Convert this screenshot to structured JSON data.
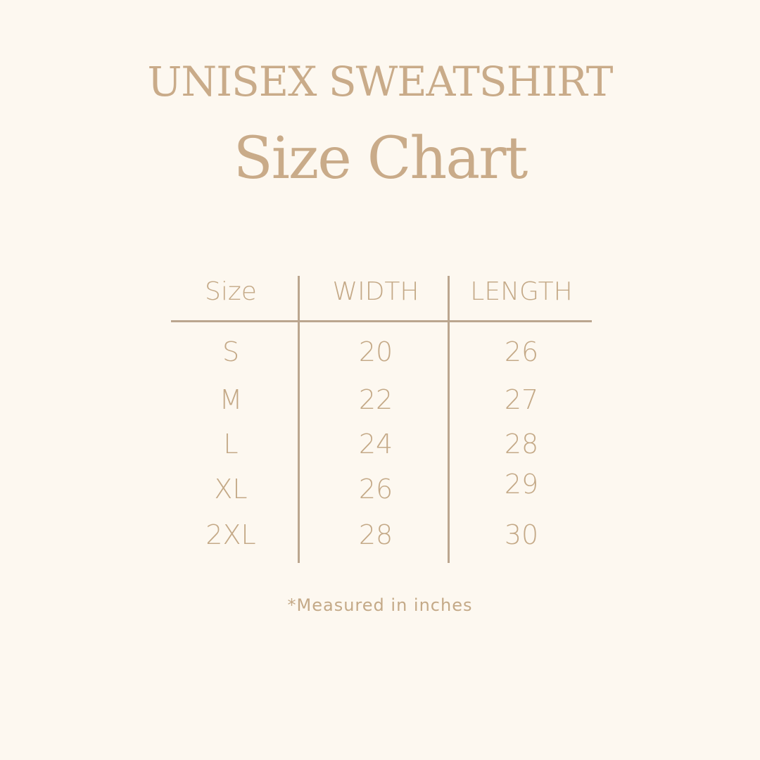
{
  "title": "UNISEX SWEATSHIRT",
  "subtitle": "Size Chart",
  "table": {
    "headers": [
      "Size",
      "WIDTH",
      "LENGTH"
    ],
    "rows": [
      [
        "S",
        "20",
        "26"
      ],
      [
        "M",
        "22",
        "27"
      ],
      [
        "L",
        "24",
        "28"
      ],
      [
        "XL",
        "26",
        "29"
      ],
      [
        "2XL",
        "28",
        "30"
      ]
    ]
  },
  "note": "*Measured in inches",
  "colors": {
    "background": "#fdf8f0",
    "text": "#c4a987",
    "lines": "#bba68f"
  }
}
